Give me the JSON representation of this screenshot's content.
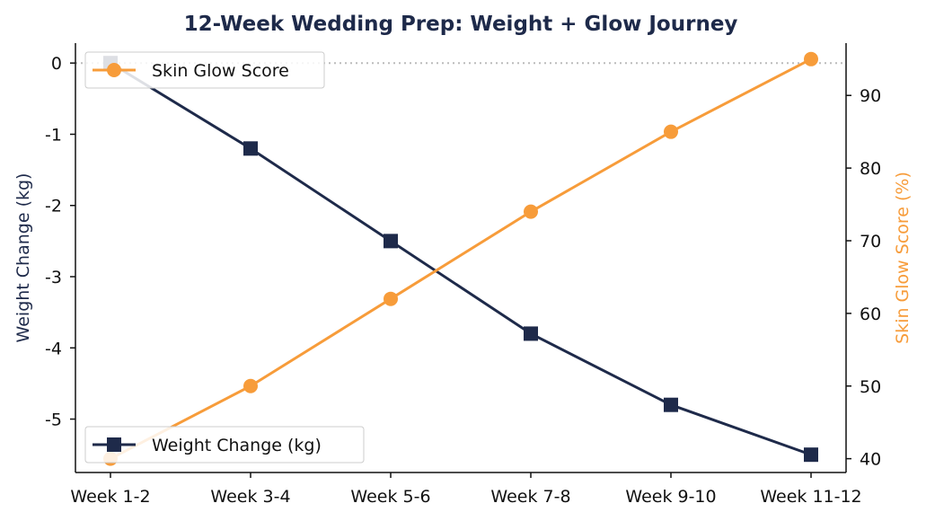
{
  "chart_data": {
    "type": "line",
    "title": "12-Week Wedding Prep: Weight + Glow Journey",
    "categories": [
      "Week 1-2",
      "Week 3-4",
      "Week 5-6",
      "Week 7-8",
      "Week 9-10",
      "Week 11-12"
    ],
    "left_axis": {
      "label": "Weight Change (kg)",
      "range": [
        -5.75,
        0.28
      ],
      "ticks": [
        0,
        -1,
        -2,
        -3,
        -4,
        -5
      ],
      "tick_labels": [
        "0",
        "-1",
        "-2",
        "-3",
        "-4",
        "-5"
      ]
    },
    "right_axis": {
      "label": "Skin Glow Score (%)",
      "range": [
        38.1,
        97.2
      ],
      "ticks": [
        40,
        50,
        60,
        70,
        80,
        90
      ],
      "tick_labels": [
        "40",
        "50",
        "60",
        "70",
        "80",
        "90"
      ]
    },
    "series": [
      {
        "name": "Weight Change (kg)",
        "axis": "left",
        "marker": "square",
        "color": "#1e2a4a",
        "values": [
          0.0,
          -1.2,
          -2.5,
          -3.8,
          -4.8,
          -5.5
        ]
      },
      {
        "name": "Skin Glow Score",
        "axis": "right",
        "marker": "circle",
        "color": "#f79c3a",
        "values": [
          40,
          50,
          62,
          74,
          85,
          95
        ]
      }
    ],
    "reference_line": {
      "axis": "left",
      "value": 0,
      "style": "dotted",
      "color": "#bbbbbb"
    },
    "legends": [
      {
        "placement": "top-left",
        "series": "Skin Glow Score"
      },
      {
        "placement": "bottom-left",
        "series": "Weight Change (kg)"
      }
    ],
    "grid": false,
    "colors": {
      "title": "#1e2a4a",
      "left_axis_label": "#1e2a4a",
      "right_axis_label": "#f79c3a",
      "axis_line": "#111111"
    }
  }
}
